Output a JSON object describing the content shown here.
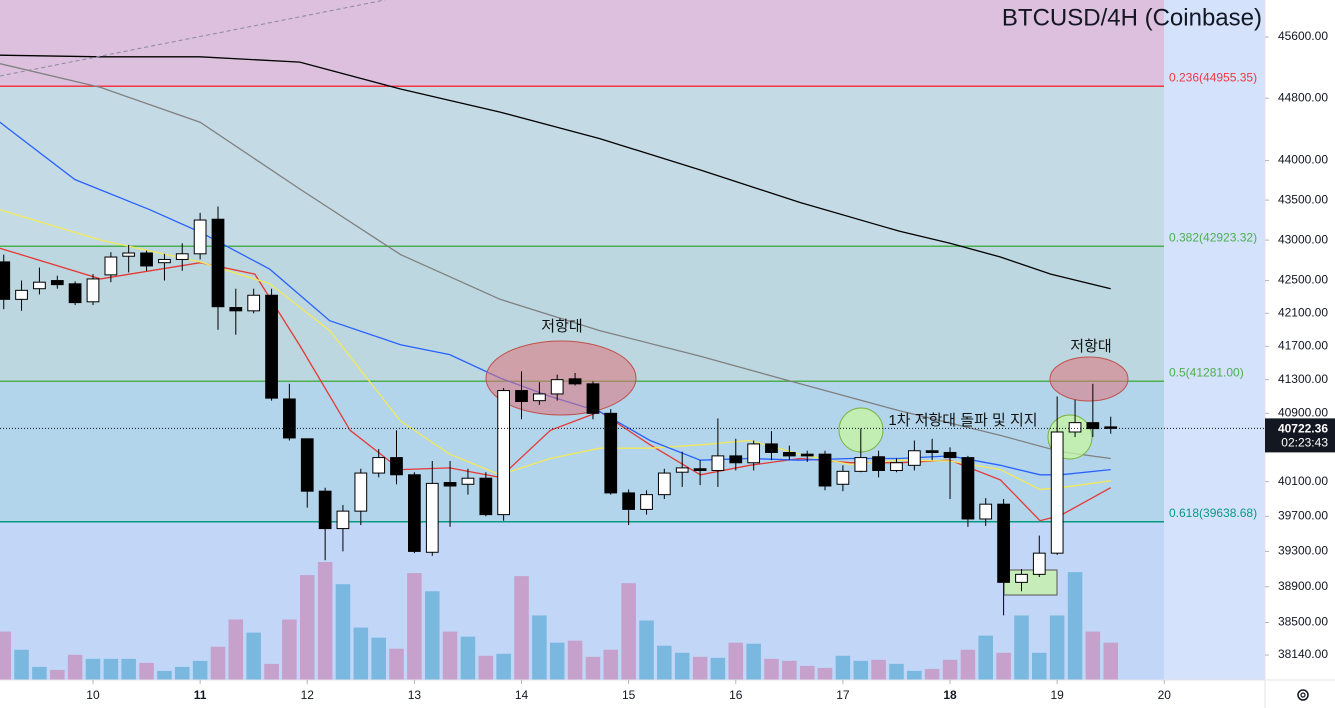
{
  "chart_data": {
    "type": "candlestick",
    "title": "BTCUSD/4H (Coinbase)",
    "log_scale": true,
    "xlim": [
      9.132,
      20.94
    ],
    "xticks": [
      10,
      11,
      12,
      13,
      14,
      15,
      16,
      17,
      18,
      19,
      20
    ],
    "ylim": [
      37866,
      46090
    ],
    "yticks": [
      {
        "value": 45600,
        "label": "45600.00"
      },
      {
        "value": 44800,
        "label": "44800.00"
      },
      {
        "value": 44000,
        "label": "44000.00"
      },
      {
        "value": 43500,
        "label": "43500.00"
      },
      {
        "value": 43000,
        "label": "43000.00"
      },
      {
        "value": 42500,
        "label": "42500.00"
      },
      {
        "value": 42100,
        "label": "42100.00"
      },
      {
        "value": 41700,
        "label": "41700.00"
      },
      {
        "value": 41300,
        "label": "41300.00"
      },
      {
        "value": 40900,
        "label": "40900.00"
      },
      {
        "value": 40100,
        "label": "40100.00"
      },
      {
        "value": 39700,
        "label": "39700.00"
      },
      {
        "value": 39300,
        "label": "39300.00"
      },
      {
        "value": 38900,
        "label": "38900.00"
      },
      {
        "value": 38500,
        "label": "38500.00"
      },
      {
        "value": 38140,
        "label": "38140.00"
      }
    ],
    "x": [
      9.167,
      9.333,
      9.5,
      9.667,
      9.833,
      10,
      10.167,
      10.333,
      10.5,
      10.667,
      10.833,
      11,
      11.167,
      11.333,
      11.5,
      11.667,
      11.833,
      12,
      12.167,
      12.333,
      12.5,
      12.667,
      12.833,
      13,
      13.167,
      13.333,
      13.5,
      13.667,
      13.833,
      14,
      14.167,
      14.333,
      14.5,
      14.667,
      14.833,
      15,
      15.167,
      15.333,
      15.5,
      15.667,
      15.833,
      16,
      16.167,
      16.333,
      16.5,
      16.667,
      16.833,
      17,
      17.167,
      17.333,
      17.5,
      17.667,
      17.833,
      18,
      18.167,
      18.333,
      18.5,
      18.667,
      18.833,
      19,
      19.167,
      19.333,
      19.5
    ],
    "open": [
      42730,
      42270,
      42400,
      42500,
      42460,
      42240,
      42570,
      42800,
      42840,
      42720,
      42760,
      42830,
      43260,
      42170,
      42130,
      42320,
      41070,
      40600,
      39990,
      39560,
      39760,
      40200,
      40380,
      40180,
      39290,
      40090,
      40070,
      40140,
      39720,
      41170,
      41050,
      41130,
      41310,
      41250,
      40900,
      39970,
      39780,
      39950,
      40210,
      40250,
      40230,
      40400,
      40320,
      40540,
      40440,
      40420,
      40420,
      40070,
      40220,
      40390,
      40230,
      40290,
      40460,
      40440,
      40380,
      39670,
      39840,
      38950,
      39040,
      39280,
      40680,
      40790,
      40740
    ],
    "high": [
      42820,
      42500,
      42660,
      42560,
      42490,
      42580,
      42850,
      42940,
      42870,
      42830,
      42960,
      43340,
      43420,
      42400,
      42400,
      42400,
      41250,
      40600,
      40030,
      39830,
      40250,
      40480,
      40700,
      40210,
      40340,
      40340,
      40250,
      40210,
      41200,
      41400,
      41270,
      41360,
      41380,
      41280,
      40950,
      40010,
      40000,
      40250,
      40450,
      40350,
      40840,
      40600,
      40580,
      40690,
      40520,
      40460,
      40460,
      40290,
      40720,
      40460,
      40370,
      40580,
      40600,
      40500,
      40400,
      39910,
      39900,
      39100,
      39480,
      41100,
      41060,
      41250,
      40860
    ],
    "low": [
      42150,
      42130,
      42330,
      42400,
      42200,
      42200,
      42480,
      42600,
      42620,
      42500,
      42620,
      42760,
      41900,
      41840,
      42100,
      41050,
      40580,
      39800,
      39200,
      39300,
      39600,
      40150,
      40070,
      39280,
      39250,
      39580,
      39950,
      39700,
      39650,
      40830,
      41000,
      41050,
      41230,
      40830,
      39950,
      39600,
      39720,
      39900,
      40040,
      40060,
      40040,
      40230,
      40230,
      40350,
      40350,
      40330,
      40000,
      39990,
      40210,
      40150,
      40210,
      40230,
      40350,
      39900,
      39580,
      39590,
      38580,
      38850,
      39010,
      39260,
      40620,
      40620,
      40660
    ],
    "close": [
      42270,
      42380,
      42480,
      42450,
      42230,
      42520,
      42790,
      42840,
      42680,
      42760,
      42830,
      43250,
      42180,
      42130,
      42320,
      41080,
      40610,
      39990,
      39560,
      39760,
      40200,
      40380,
      40180,
      39300,
      40080,
      40050,
      40140,
      39720,
      41170,
      41040,
      41130,
      41300,
      41250,
      40900,
      39970,
      39780,
      39950,
      40200,
      40260,
      40230,
      40400,
      40320,
      40540,
      40440,
      40400,
      40400,
      40050,
      40220,
      40380,
      40230,
      40320,
      40460,
      40440,
      40380,
      39670,
      39840,
      38950,
      39040,
      39280,
      40680,
      40790,
      40720,
      40722.36
    ],
    "volume": [
      48,
      30,
      13,
      10,
      25,
      21,
      21,
      21,
      17,
      9,
      13,
      19,
      33,
      60,
      47,
      16,
      60,
      104,
      117,
      95,
      52,
      42,
      31,
      106,
      88,
      48,
      43,
      24,
      26,
      103,
      64,
      37,
      39,
      23,
      30,
      96,
      59,
      34,
      27,
      23,
      22,
      37,
      36,
      21,
      19,
      14,
      12,
      24,
      19,
      20,
      16,
      9,
      11,
      20,
      30,
      44,
      27,
      64,
      27,
      64,
      107,
      48,
      37
    ],
    "up_color": "#ffffff",
    "down_color": "#000000",
    "volume_up_color": "#6fb3dc",
    "volume_down_color": "#c598c4",
    "lines": [
      {
        "color": "#e53935",
        "x": [
          9.13,
          10.07,
          11.0,
          11.51,
          11.93,
          12.4,
          12.87,
          13.33,
          13.8,
          14.27,
          14.73,
          15.2,
          15.67,
          16.13,
          16.6,
          17.07,
          17.53,
          18.0,
          18.47,
          18.84,
          19.03,
          19.5
        ],
        "values": [
          42900,
          42520,
          42720,
          42580,
          41710,
          40700,
          40240,
          40260,
          40150,
          40700,
          40920,
          40530,
          40180,
          40290,
          40370,
          40320,
          40320,
          40350,
          40120,
          39650,
          39710,
          40030
        ]
      },
      {
        "color": "#f2e85a",
        "x": [
          9.13,
          10.07,
          11.0,
          11.65,
          12.21,
          12.87,
          13.33,
          13.8,
          14.27,
          14.73,
          15.2,
          15.67,
          16.13,
          16.6,
          17.07,
          17.53,
          18.0,
          18.47,
          18.84,
          19.03,
          19.5
        ],
        "values": [
          43380,
          43000,
          42730,
          42460,
          41890,
          40810,
          40420,
          40180,
          40370,
          40490,
          40490,
          40530,
          40580,
          40420,
          40300,
          40350,
          40340,
          40240,
          40010,
          40030,
          40110
        ]
      },
      {
        "color": "#2962ff",
        "x": [
          9.13,
          9.83,
          10.53,
          11.0,
          11.65,
          12.21,
          12.87,
          13.33,
          13.8,
          14.27,
          14.73,
          15.2,
          15.67,
          16.13,
          16.6,
          17.07,
          17.53,
          18.0,
          18.47,
          18.84,
          19.03,
          19.5
        ],
        "values": [
          44490,
          43760,
          43380,
          43100,
          42640,
          42010,
          41720,
          41600,
          41320,
          41100,
          40920,
          40580,
          40350,
          40370,
          40350,
          40370,
          40370,
          40400,
          40290,
          40180,
          40180,
          40240
        ]
      },
      {
        "color": "#808080",
        "x": [
          9.13,
          10.07,
          11.0,
          11.93,
          12.87,
          13.8,
          14.73,
          15.67,
          16.6,
          17.53,
          18.47,
          19.03,
          19.5
        ],
        "values": [
          45250,
          44940,
          44490,
          43640,
          42820,
          42270,
          41890,
          41580,
          41250,
          40930,
          40640,
          40450,
          40370
        ]
      },
      {
        "color": "#000000",
        "x": [
          9.13,
          10.07,
          11.0,
          11.93,
          12.87,
          13.8,
          14.73,
          15.67,
          16.6,
          17.53,
          18.0,
          18.47,
          18.94,
          19.5
        ],
        "values": [
          45360,
          45340,
          45340,
          45270,
          44920,
          44620,
          44280,
          43880,
          43470,
          43110,
          42960,
          42790,
          42580,
          42400
        ]
      }
    ],
    "fib_levels": [
      {
        "value": 44955.35,
        "label": "0.236(44955.35)",
        "color": "#f23645"
      },
      {
        "value": 42923.32,
        "label": "0.382(42923.32)",
        "color": "#4caf50"
      },
      {
        "value": 41281.0,
        "label": "0.5(41281.00)",
        "color": "#4caf50"
      },
      {
        "value": 39638.68,
        "label": "0.618(39638.68)",
        "color": "#089981"
      }
    ],
    "zone_colors": [
      "#dcc0de",
      "#c4dbe5",
      "#bcd7e0",
      "#b2d5eb",
      "#c2d7f8"
    ],
    "annotations": [
      "저항대",
      "저항대",
      "1차 저항대 돌파 및 지지"
    ],
    "last_price": 40722.36,
    "countdown": "02:23:43"
  }
}
